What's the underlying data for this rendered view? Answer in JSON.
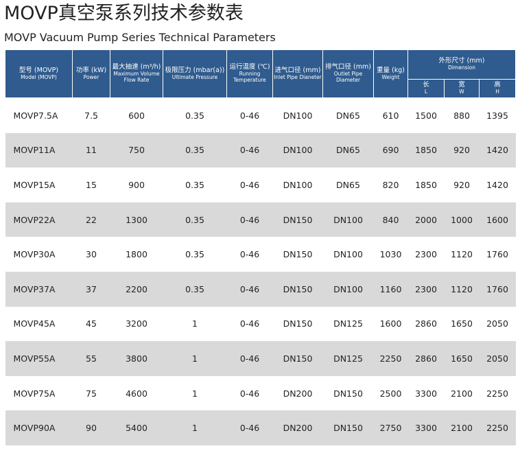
{
  "header": {
    "title": "MOVP真空泵系列技术参数表",
    "subtitle": "MOVP Vacuum Pump Series Technical Parameters"
  },
  "table": {
    "columns": [
      {
        "zh": "型号 (MOVP)",
        "en": "Model (MOVP)"
      },
      {
        "zh": "功率 (kW)",
        "en": "Power"
      },
      {
        "zh": "最大抽速 (m³/h)",
        "en": "Maximum Volume Flow Rate"
      },
      {
        "zh": "极限压力 (mbar(a))",
        "en": "Ultimate Pressure"
      },
      {
        "zh": "运行温度 (℃)",
        "en": "Running Temperature"
      },
      {
        "zh": "进气口径 (mm)",
        "en": "Inlet Pipe Dianeter"
      },
      {
        "zh": "排气口径 (mm)",
        "en": "Outlet Pipe Diameter"
      },
      {
        "zh": "重量 (kg)",
        "en": "Weight"
      }
    ],
    "group": {
      "zh": "外形尺寸 (mm)",
      "en": "Dimension"
    },
    "subcolumns": [
      {
        "zh": "长",
        "en": "L"
      },
      {
        "zh": "宽",
        "en": "W"
      },
      {
        "zh": "高",
        "en": "H"
      }
    ],
    "rows": [
      [
        "MOVP7.5A",
        7.5,
        600,
        0.35,
        "0-46",
        "DN100",
        "DN65",
        610,
        1500,
        880,
        1395
      ],
      [
        "MOVP11A",
        11,
        750,
        0.35,
        "0-46",
        "DN100",
        "DN65",
        690,
        1850,
        920,
        1420
      ],
      [
        "MOVP15A",
        15,
        900,
        0.35,
        "0-46",
        "DN100",
        "DN65",
        820,
        1850,
        920,
        1420
      ],
      [
        "MOVP22A",
        22,
        1300,
        0.35,
        "0-46",
        "DN150",
        "DN100",
        840,
        2000,
        1000,
        1600
      ],
      [
        "MOVP30A",
        30,
        1800,
        0.35,
        "0-46",
        "DN150",
        "DN100",
        1030,
        2300,
        1120,
        1760
      ],
      [
        "MOVP37A",
        37,
        2200,
        0.35,
        "0-46",
        "DN150",
        "DN100",
        1160,
        2300,
        1120,
        1760
      ],
      [
        "MOVP45A",
        45,
        3200,
        1,
        "0-46",
        "DN150",
        "DN125",
        1600,
        2860,
        1650,
        2050
      ],
      [
        "MOVP55A",
        55,
        3800,
        1,
        "0-46",
        "DN150",
        "DN125",
        2250,
        2860,
        1650,
        2050
      ],
      [
        "MOVP75A",
        75,
        4600,
        1,
        "0-46",
        "DN200",
        "DN150",
        2500,
        3300,
        2100,
        2250
      ],
      [
        "MOVP90A",
        90,
        5400,
        1,
        "0-46",
        "DN200",
        "DN150",
        2750,
        3300,
        2100,
        2250
      ]
    ]
  }
}
